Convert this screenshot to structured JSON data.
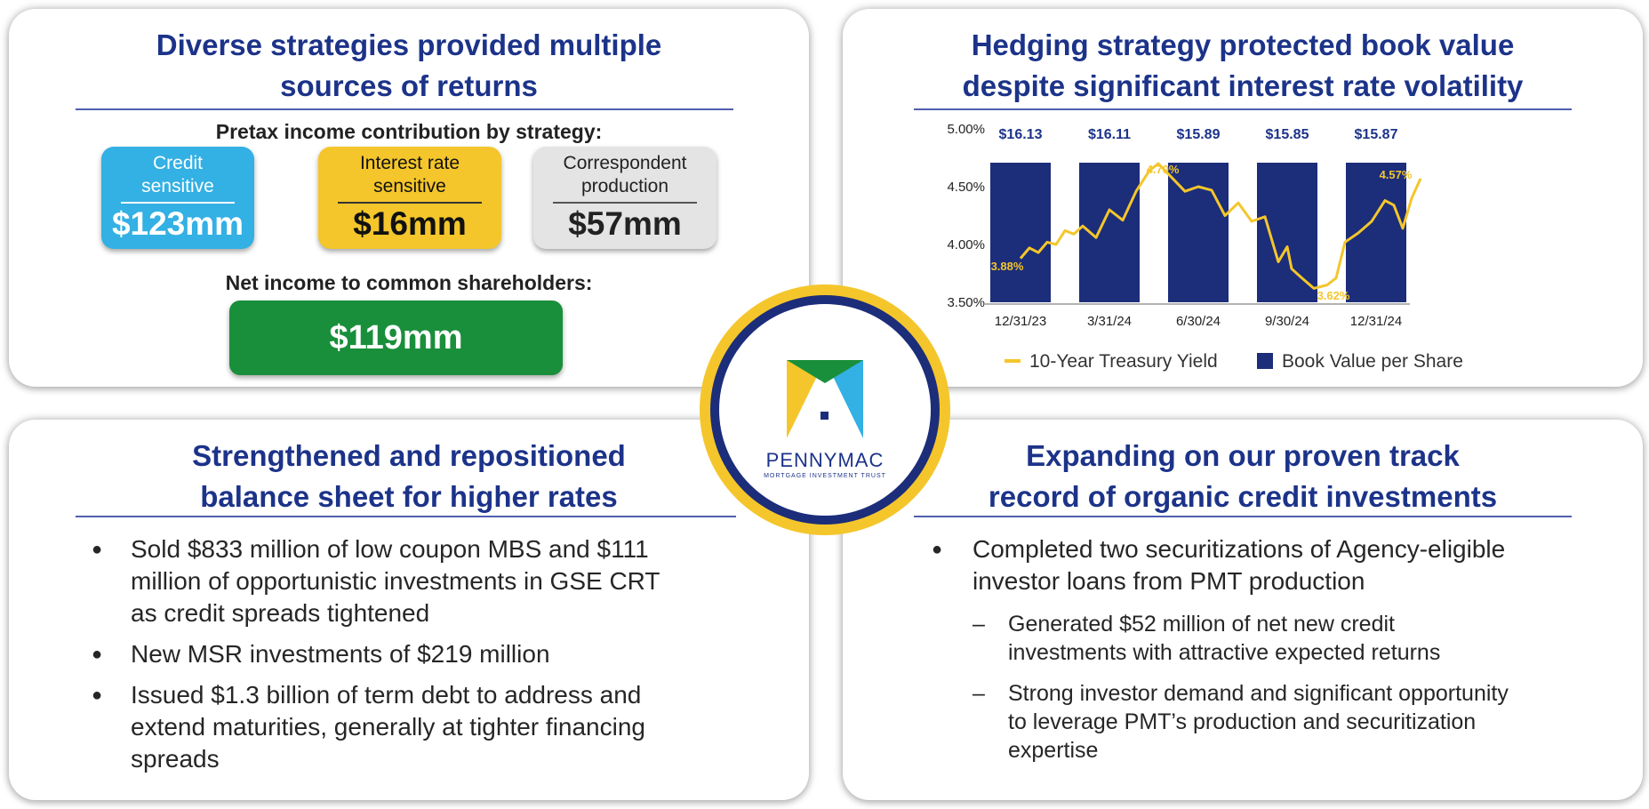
{
  "panels": {
    "top_left": {
      "title_line1": "Diverse strategies provided multiple",
      "title_line2": "sources of returns",
      "subtitle": "Pretax income contribution by strategy:",
      "tiles": [
        {
          "label_line1": "Credit",
          "label_line2": "sensitive",
          "value": "$123mm",
          "color": "#33b0e4"
        },
        {
          "label_line1": "Interest rate",
          "label_line2": "sensitive",
          "value": "$16mm",
          "color": "#f4c62b"
        },
        {
          "label_line1": "Correspondent",
          "label_line2": "production",
          "value": "$57mm",
          "color": "#e4e4e4"
        }
      ],
      "net_label": "Net income to common shareholders:",
      "net_value": "$119mm",
      "net_color": "#1a8f3b"
    },
    "top_right": {
      "title_line1": "Hedging strategy protected book value",
      "title_line2": "despite significant interest rate volatility"
    },
    "bottom_left": {
      "title_line1": "Strengthened and repositioned",
      "title_line2": "balance sheet for higher rates",
      "bullets": [
        [
          "Sold $833 million of low coupon MBS and $111",
          "million of opportunistic investments in GSE CRT",
          "as credit spreads tightened"
        ],
        [
          "New MSR investments of $219 million"
        ],
        [
          "Issued $1.3 billion of term debt to address and",
          "extend maturities, generally at tighter financing",
          "spreads"
        ]
      ]
    },
    "bottom_right": {
      "title_line1": "Expanding on our proven track",
      "title_line2": "record of organic credit investments",
      "bullet_lines": [
        "Completed two securitizations of Agency-eligible",
        "investor loans from PMT production"
      ],
      "sub_bullets": [
        [
          "Generated $52 million of net new credit",
          "investments with attractive expected returns"
        ],
        [
          "Strong investor demand and significant opportunity",
          "to leverage PMT’s production and securitization",
          "expertise"
        ]
      ]
    }
  },
  "logo": {
    "wordmark": "PENNYMAC",
    "tagline": "MORTGAGE INVESTMENT TRUST",
    "colors": {
      "yellow": "#f4c62b",
      "green": "#1a8f3b",
      "blue": "#33b0e4",
      "navy": "#1c2d7a"
    }
  },
  "chart_data": {
    "type": "bar",
    "categories": [
      "12/31/23",
      "3/31/24",
      "6/30/24",
      "9/30/24",
      "12/31/24"
    ],
    "series": [
      {
        "name": "Book Value per Share",
        "type": "bar",
        "color": "#1c2d7a",
        "value_labels": [
          "$16.13",
          "$16.11",
          "$15.89",
          "$15.85",
          "$15.87"
        ]
      },
      {
        "name": "10-Year Treasury Yield",
        "type": "line",
        "color": "#f4c62b",
        "x": [
          0.0,
          0.1,
          0.2,
          0.3,
          0.4,
          0.5,
          0.6,
          0.7,
          0.85,
          1.0,
          1.15,
          1.3,
          1.45,
          1.55,
          1.7,
          1.85,
          2.0,
          2.15,
          2.3,
          2.45,
          2.6,
          2.75,
          2.9,
          3.0,
          3.05,
          3.15,
          3.3,
          3.45,
          3.55,
          3.65,
          3.8,
          3.95,
          4.1,
          4.2,
          4.3,
          4.4,
          4.5
        ],
        "values": [
          3.88,
          3.97,
          3.93,
          4.02,
          4.0,
          4.12,
          4.09,
          4.16,
          4.06,
          4.3,
          4.21,
          4.46,
          4.64,
          4.7,
          4.58,
          4.46,
          4.5,
          4.47,
          4.25,
          4.36,
          4.2,
          4.24,
          3.85,
          3.98,
          3.79,
          3.72,
          3.62,
          3.65,
          3.71,
          4.02,
          4.1,
          4.2,
          4.38,
          4.34,
          4.14,
          4.4,
          4.57
        ]
      }
    ],
    "y_tick_labels": [
      "5.00%",
      "4.50%",
      "4.00%",
      "3.50%"
    ],
    "ylim": [
      3.5,
      5.0
    ],
    "annotations": [
      "3.88%",
      "4.70%",
      "3.62%",
      "4.57%"
    ],
    "legend": "bottom",
    "grid": false
  }
}
